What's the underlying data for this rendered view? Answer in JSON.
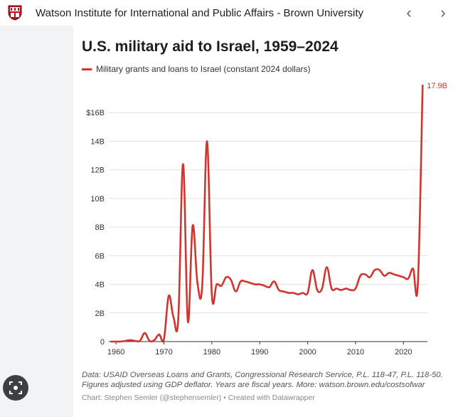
{
  "browser": {
    "site_title": "Watson Institute for International and Public Affairs - Brown University",
    "prev_icon": "chevron-left-icon",
    "next_icon": "chevron-right-icon",
    "prev_glyph": "‹",
    "next_glyph": "›"
  },
  "colors": {
    "line": "#d0342c",
    "grid": "#e0e0e0"
  },
  "chart_data": {
    "type": "line",
    "title": "U.S. military aid to Israel, 1959–2024",
    "legend": "Military grants and loans to Israel (constant 2024 dollars)",
    "end_label": "17.9B",
    "xlabel": "",
    "ylabel": "",
    "xlim": [
      1958.5,
      2025
    ],
    "ylim": [
      0,
      18
    ],
    "x_ticks": [
      1960,
      1970,
      1980,
      1990,
      2000,
      2010,
      2020
    ],
    "y_ticks": [
      {
        "value": 0,
        "label": "0"
      },
      {
        "value": 2,
        "label": "2B"
      },
      {
        "value": 4,
        "label": "4B"
      },
      {
        "value": 6,
        "label": "6B"
      },
      {
        "value": 8,
        "label": "8B"
      },
      {
        "value": 10,
        "label": "10B"
      },
      {
        "value": 12,
        "label": "12B"
      },
      {
        "value": 14,
        "label": "14B"
      },
      {
        "value": 16,
        "label": "$16B"
      }
    ],
    "x": [
      1959,
      1960,
      1961,
      1962,
      1963,
      1964,
      1965,
      1966,
      1967,
      1968,
      1969,
      1970,
      1971,
      1972,
      1973,
      1974,
      1975,
      1976,
      1977,
      1978,
      1979,
      1980,
      1981,
      1982,
      1983,
      1984,
      1985,
      1986,
      1987,
      1988,
      1989,
      1990,
      1991,
      1992,
      1993,
      1994,
      1995,
      1996,
      1997,
      1998,
      1999,
      2000,
      2001,
      2002,
      2003,
      2004,
      2005,
      2006,
      2007,
      2008,
      2009,
      2010,
      2011,
      2012,
      2013,
      2014,
      2015,
      2016,
      2017,
      2018,
      2019,
      2020,
      2021,
      2022,
      2023,
      2024
    ],
    "values": [
      0.0,
      0.0,
      0.0,
      0.05,
      0.1,
      0.05,
      0.05,
      0.6,
      0.05,
      0.1,
      0.5,
      0.15,
      3.2,
      1.7,
      1.6,
      12.4,
      1.4,
      8.1,
      4.1,
      3.9,
      14.0,
      3.3,
      4.0,
      3.9,
      4.5,
      4.3,
      3.5,
      4.2,
      4.2,
      4.1,
      4.0,
      4.0,
      3.9,
      3.8,
      4.2,
      3.6,
      3.5,
      3.4,
      3.4,
      3.3,
      3.4,
      3.4,
      5.0,
      3.6,
      3.7,
      5.2,
      3.7,
      3.7,
      3.6,
      3.7,
      3.6,
      3.7,
      4.6,
      4.7,
      4.5,
      5.0,
      5.0,
      4.6,
      4.8,
      4.7,
      4.6,
      4.5,
      4.4,
      5.1,
      4.0,
      17.9
    ]
  },
  "footnote": "Data: USAID Overseas Loans and Grants, Congressional Research Service, P.L. 118-47, P.L. 118-50. Figures adjusted using GDP deflator. Years are fiscal years. More: watson.brown.edu/costsofwar",
  "credit": "Chart: Stephen Semler (@stephensemler) • Created with Datawrapper",
  "lens_icon": "image-search-icon"
}
